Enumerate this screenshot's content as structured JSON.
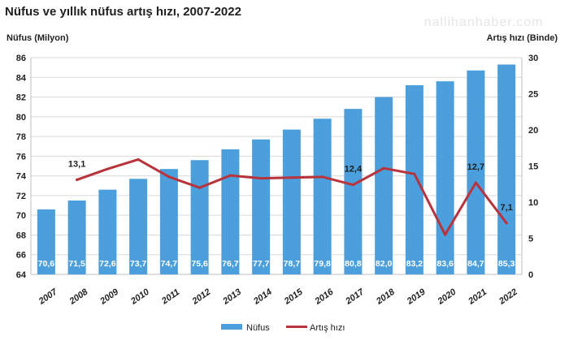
{
  "watermark": "nallihanhaber.com",
  "chart_data": {
    "type": "bar",
    "title": "Nüfus ve yıllık nüfus artış hızı, 2007-2022",
    "ylabel": "Nüfus (Milyon)",
    "y2label": "Artış hızı (Binde)",
    "categories": [
      "2007",
      "2008",
      "2009",
      "2010",
      "2011",
      "2012",
      "2013",
      "2014",
      "2015",
      "2016",
      "2017",
      "2018",
      "2019",
      "2020",
      "2021",
      "2022"
    ],
    "ylim": [
      64,
      86
    ],
    "y2lim": [
      0,
      30
    ],
    "yticks": [
      64,
      66,
      68,
      70,
      72,
      74,
      76,
      78,
      80,
      82,
      84,
      86
    ],
    "y2ticks": [
      0,
      5,
      10,
      15,
      20,
      25,
      30
    ],
    "grid": true,
    "legend_position": "bottom",
    "series": [
      {
        "name": "Nüfus",
        "type": "bar",
        "axis": "left",
        "color": "#4a9fdc",
        "values": [
          70.6,
          71.5,
          72.6,
          73.7,
          74.7,
          75.6,
          76.7,
          77.7,
          78.7,
          79.8,
          80.8,
          82.0,
          83.2,
          83.6,
          84.7,
          85.3
        ],
        "labels": [
          "70,6",
          "71,5",
          "72,6",
          "73,7",
          "74,7",
          "75,6",
          "76,7",
          "77,7",
          "78,7",
          "79,8",
          "80,8",
          "82,0",
          "83,2",
          "83,6",
          "84,7",
          "85,3"
        ]
      },
      {
        "name": "Artış hızı",
        "type": "line",
        "axis": "right",
        "color": "#b8333b",
        "values": [
          null,
          13.1,
          14.6,
          15.9,
          13.5,
          12.0,
          13.7,
          13.3,
          13.4,
          13.5,
          12.4,
          14.7,
          13.9,
          5.5,
          12.7,
          7.1
        ],
        "annotations": [
          {
            "category": "2008",
            "text": "13,1"
          },
          {
            "category": "2017",
            "text": "12,4"
          },
          {
            "category": "2021",
            "text": "12,7"
          },
          {
            "category": "2022",
            "text": "7,1"
          }
        ]
      }
    ]
  }
}
